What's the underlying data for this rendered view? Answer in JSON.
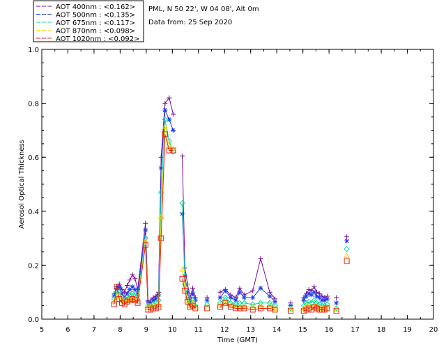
{
  "chart_data": {
    "type": "line",
    "title": "",
    "xlabel": "Time (GMT)",
    "ylabel": "Aerosol Optical Thickness",
    "xlim": [
      5,
      20
    ],
    "ylim": [
      0,
      1.0
    ],
    "x_ticks": [
      "5",
      "6",
      "7",
      "8",
      "9",
      "10",
      "11",
      "12",
      "13",
      "14",
      "15",
      "16",
      "17",
      "18",
      "19",
      "20"
    ],
    "y_ticks": [
      "0.0",
      "0.2",
      "0.4",
      "0.6",
      "0.8",
      "1.0"
    ],
    "site_info": "PML, N 50 22', W 04 08', Alt 0m",
    "date_info": "Data from: 25 Sep 2020",
    "legend": [
      {
        "label": "AOT  400nm : <0.162>",
        "color": "#7a0a9a",
        "marker": "plus"
      },
      {
        "label": "AOT  500nm : <0.135>",
        "color": "#1f3de8",
        "marker": "star"
      },
      {
        "label": "AOT  675nm : <0.117>",
        "color": "#12d8a0",
        "marker": "diamond"
      },
      {
        "label": "AOT  870nm : <0.098>",
        "color": "#ffd700",
        "marker": "triangle"
      },
      {
        "label": "AOT 1020nm : <0.092>",
        "color": "#e0230f",
        "marker": "square"
      }
    ],
    "x": [
      7.77,
      7.87,
      7.97,
      8.07,
      8.17,
      8.27,
      8.37,
      8.47,
      8.57,
      8.67,
      8.97,
      9.07,
      9.17,
      9.27,
      9.37,
      9.47,
      9.57,
      9.72,
      9.88,
      10.03,
      10.38,
      10.48,
      10.58,
      10.68,
      10.78,
      10.88,
      11.33,
      11.83,
      12.03,
      12.23,
      12.43,
      12.58,
      12.75,
      13.08,
      13.38,
      13.73,
      13.93,
      14.53,
      15.03,
      15.13,
      15.23,
      15.33,
      15.43,
      15.53,
      15.63,
      15.73,
      15.83,
      15.93,
      16.28,
      16.68
    ],
    "series": [
      {
        "name": "AOT 400nm",
        "values": [
          0.095,
          0.12,
          0.13,
          0.11,
          0.1,
          0.125,
          0.145,
          0.165,
          0.15,
          0.11,
          0.355,
          0.07,
          0.07,
          0.08,
          0.085,
          0.1,
          0.6,
          0.8,
          0.82,
          0.76,
          0.605,
          0.19,
          0.13,
          0.08,
          0.115,
          0.08,
          0.08,
          0.1,
          0.11,
          0.09,
          0.08,
          0.115,
          0.09,
          0.105,
          0.225,
          0.1,
          0.075,
          0.06,
          0.08,
          0.095,
          0.11,
          0.105,
          0.12,
          0.1,
          0.095,
          0.085,
          0.08,
          0.085,
          0.08,
          0.305
        ]
      },
      {
        "name": "AOT 500nm",
        "values": [
          0.085,
          0.115,
          0.12,
          0.095,
          0.08,
          0.095,
          0.11,
          0.12,
          0.11,
          0.09,
          0.33,
          0.065,
          0.06,
          0.07,
          0.075,
          0.09,
          0.56,
          0.775,
          0.74,
          0.7,
          0.39,
          0.16,
          0.1,
          0.065,
          0.095,
          0.07,
          0.07,
          0.08,
          0.105,
          0.08,
          0.07,
          0.1,
          0.08,
          0.08,
          0.115,
          0.085,
          0.065,
          0.05,
          0.07,
          0.085,
          0.095,
          0.09,
          0.1,
          0.085,
          0.08,
          0.07,
          0.07,
          0.075,
          0.06,
          0.29
        ]
      },
      {
        "name": "AOT 675nm",
        "values": [
          0.075,
          0.1,
          0.1,
          0.08,
          0.07,
          0.08,
          0.09,
          0.095,
          0.09,
          0.075,
          0.3,
          0.05,
          0.05,
          0.055,
          0.06,
          0.07,
          0.47,
          0.74,
          0.66,
          0.62,
          0.43,
          0.13,
          0.08,
          0.055,
          0.07,
          0.05,
          0.055,
          0.06,
          0.08,
          0.06,
          0.055,
          0.06,
          0.06,
          0.055,
          0.06,
          0.06,
          0.05,
          0.04,
          0.05,
          0.06,
          0.065,
          0.06,
          0.07,
          0.06,
          0.055,
          0.05,
          0.05,
          0.055,
          0.04,
          0.26
        ]
      },
      {
        "name": "AOT 870nm",
        "values": [
          0.065,
          0.085,
          0.085,
          0.07,
          0.065,
          0.07,
          0.075,
          0.08,
          0.075,
          0.065,
          0.29,
          0.045,
          0.045,
          0.05,
          0.05,
          0.055,
          0.38,
          0.715,
          0.64,
          0.63,
          0.185,
          0.12,
          0.07,
          0.05,
          0.06,
          0.045,
          0.045,
          0.05,
          0.065,
          0.05,
          0.045,
          0.045,
          0.045,
          0.045,
          0.045,
          0.045,
          0.04,
          0.035,
          0.04,
          0.045,
          0.05,
          0.045,
          0.05,
          0.045,
          0.045,
          0.04,
          0.04,
          0.045,
          0.035,
          0.235
        ]
      },
      {
        "name": "AOT 1020nm",
        "values": [
          0.055,
          0.12,
          0.075,
          0.06,
          0.055,
          0.065,
          0.07,
          0.075,
          0.07,
          0.06,
          0.275,
          0.035,
          0.035,
          0.04,
          0.04,
          0.045,
          0.3,
          0.685,
          0.625,
          0.625,
          0.15,
          0.105,
          0.065,
          0.045,
          0.05,
          0.04,
          0.04,
          0.045,
          0.06,
          0.045,
          0.04,
          0.04,
          0.04,
          0.035,
          0.04,
          0.04,
          0.035,
          0.03,
          0.03,
          0.035,
          0.04,
          0.035,
          0.045,
          0.04,
          0.035,
          0.035,
          0.035,
          0.04,
          0.03,
          0.215
        ]
      }
    ]
  }
}
